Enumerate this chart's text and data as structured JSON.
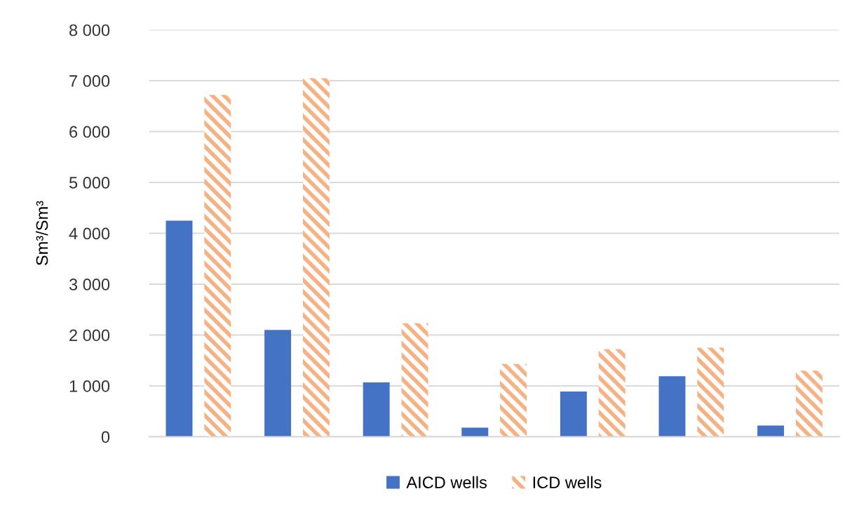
{
  "chart_data": {
    "type": "bar",
    "ylabel": "Sm³/Sm³",
    "categories": [
      null,
      null,
      null,
      null,
      null,
      null,
      null
    ],
    "series": [
      {
        "name": "AICD wells",
        "color": "#4472c4",
        "values": [
          4250,
          2100,
          1070,
          180,
          890,
          1190,
          220
        ]
      },
      {
        "name": "ICD wells",
        "color": "#f4b183",
        "values": [
          6720,
          7050,
          2230,
          1430,
          1720,
          1750,
          1300
        ]
      }
    ],
    "ylim": [
      0,
      8000
    ],
    "yticks": [
      {
        "value": 0,
        "label": "0"
      },
      {
        "value": 1000,
        "label": "1 000"
      },
      {
        "value": 2000,
        "label": "2 000"
      },
      {
        "value": 3000,
        "label": "3 000"
      },
      {
        "value": 4000,
        "label": "4 000"
      },
      {
        "value": 5000,
        "label": "5 000"
      },
      {
        "value": 6000,
        "label": "6 000"
      },
      {
        "value": 7000,
        "label": "7 000"
      },
      {
        "value": 8000,
        "label": "8 000"
      }
    ],
    "grid": "y",
    "legend": "bottom"
  }
}
